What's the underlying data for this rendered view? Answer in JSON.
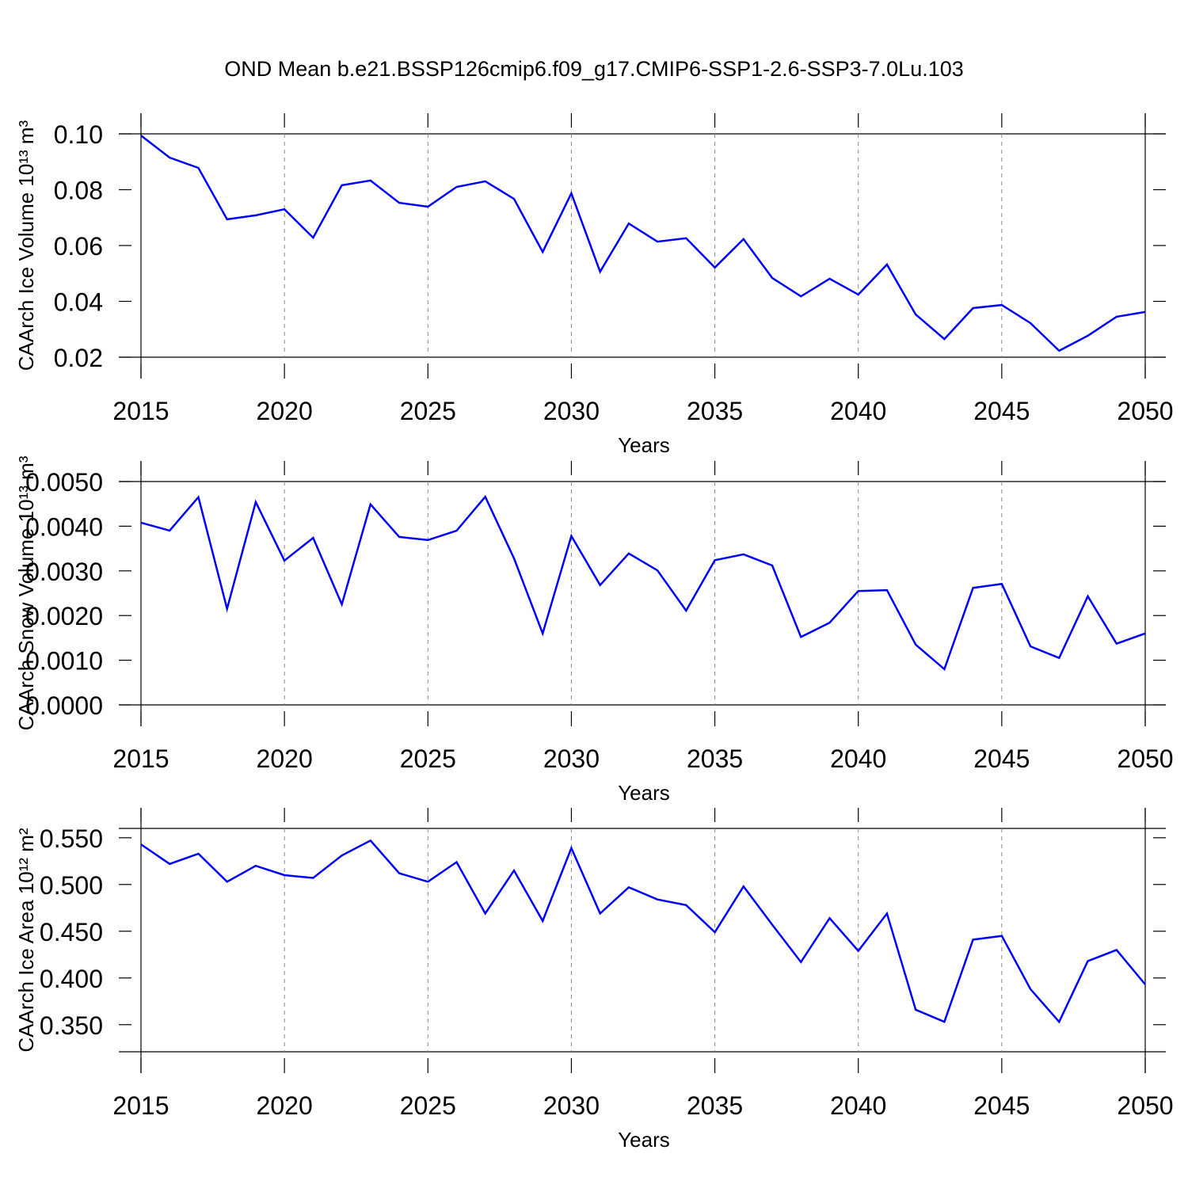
{
  "chart_data": [
    {
      "type": "line",
      "title": "OND Mean b.e21.BSSP126cmip6.f09_g17.CMIP6-SSP1-2.6-SSP3-7.0Lu.103",
      "ylabel": "CAArch Ice Volume 10¹³ m³",
      "xlabel": "Years",
      "color": "#0000ff",
      "grid": true,
      "x": [
        2015,
        2016,
        2017,
        2018,
        2019,
        2020,
        2021,
        2022,
        2023,
        2024,
        2025,
        2026,
        2027,
        2028,
        2029,
        2030,
        2031,
        2032,
        2033,
        2034,
        2035,
        2036,
        2037,
        2038,
        2039,
        2040,
        2041,
        2042,
        2043,
        2044,
        2045,
        2046,
        2047,
        2048,
        2049,
        2050
      ],
      "values": [
        0.0994,
        0.0915,
        0.0878,
        0.0694,
        0.0708,
        0.073,
        0.0628,
        0.0816,
        0.0833,
        0.0753,
        0.0739,
        0.081,
        0.083,
        0.0767,
        0.0577,
        0.0787,
        0.0506,
        0.0679,
        0.0614,
        0.0626,
        0.0521,
        0.0623,
        0.0484,
        0.0418,
        0.0481,
        0.0424,
        0.0532,
        0.0353,
        0.0265,
        0.0376,
        0.0387,
        0.0322,
        0.0223,
        0.0277,
        0.0345,
        0.0362
      ],
      "xlim": [
        2015,
        2050
      ],
      "xticks": [
        2015,
        2020,
        2025,
        2030,
        2035,
        2040,
        2045,
        2050
      ],
      "ylim": [
        0.02,
        0.1
      ],
      "yticks": [
        0.02,
        0.04,
        0.06,
        0.08,
        {
          "value": 0.1,
          "label": "0.10"
        }
      ]
    },
    {
      "type": "line",
      "ylabel": "CAArch Snow Volume 10¹³ m³",
      "xlabel": "Years",
      "color": "#0000ff",
      "grid": true,
      "x": [
        2015,
        2016,
        2017,
        2018,
        2019,
        2020,
        2021,
        2022,
        2023,
        2024,
        2025,
        2026,
        2027,
        2028,
        2029,
        2030,
        2031,
        2032,
        2033,
        2034,
        2035,
        2036,
        2037,
        2038,
        2039,
        2040,
        2041,
        2042,
        2043,
        2044,
        2045,
        2046,
        2047,
        2048,
        2049,
        2050
      ],
      "values": [
        0.00408,
        0.0039,
        0.00465,
        0.00215,
        0.00454,
        0.00323,
        0.00374,
        0.00225,
        0.00449,
        0.00376,
        0.00369,
        0.0039,
        0.00466,
        0.00328,
        0.0016,
        0.00378,
        0.00268,
        0.00339,
        0.00301,
        0.00211,
        0.00324,
        0.00337,
        0.00312,
        0.00152,
        0.00184,
        0.00255,
        0.00257,
        0.00135,
        0.0008,
        0.00262,
        0.00271,
        0.00131,
        0.00105,
        0.00243,
        0.00137,
        0.0016
      ],
      "xlim": [
        2015,
        2050
      ],
      "xticks": [
        2015,
        2020,
        2025,
        2030,
        2035,
        2040,
        2045,
        2050
      ],
      "ylim": [
        0,
        0.005
      ],
      "yticks": [
        {
          "value": 0,
          "label": "0.0000"
        },
        {
          "value": 0.001,
          "label": "0.0010"
        },
        {
          "value": 0.002,
          "label": "0.0020"
        },
        {
          "value": 0.003,
          "label": "0.0030"
        },
        {
          "value": 0.004,
          "label": "0.0040"
        },
        {
          "value": 0.005,
          "label": "0.0050"
        }
      ]
    },
    {
      "type": "line",
      "ylabel": "CAArch Ice Area 10¹² m²",
      "xlabel": "Years",
      "color": "#0000ff",
      "grid": true,
      "x": [
        2015,
        2016,
        2017,
        2018,
        2019,
        2020,
        2021,
        2022,
        2023,
        2024,
        2025,
        2026,
        2027,
        2028,
        2029,
        2030,
        2031,
        2032,
        2033,
        2034,
        2035,
        2036,
        2037,
        2038,
        2039,
        2040,
        2041,
        2042,
        2043,
        2044,
        2045,
        2046,
        2047,
        2048,
        2049,
        2050
      ],
      "values": [
        0.543,
        0.522,
        0.533,
        0.503,
        0.52,
        0.51,
        0.507,
        0.531,
        0.547,
        0.512,
        0.503,
        0.524,
        0.469,
        0.515,
        0.461,
        0.539,
        0.469,
        0.497,
        0.484,
        0.478,
        0.449,
        0.498,
        0.457,
        0.417,
        0.464,
        0.429,
        0.469,
        0.366,
        0.353,
        0.441,
        0.445,
        0.388,
        0.353,
        0.418,
        0.43,
        0.393
      ],
      "xlim": [
        2015,
        2050
      ],
      "xticks": [
        2015,
        2020,
        2025,
        2030,
        2035,
        2040,
        2045,
        2050
      ],
      "ylim": [
        0.321,
        0.56
      ],
      "yticks": [
        {
          "value": 0.35,
          "label": "0.350"
        },
        {
          "value": 0.4,
          "label": "0.400"
        },
        {
          "value": 0.45,
          "label": "0.450"
        },
        {
          "value": 0.5,
          "label": "0.500"
        },
        {
          "value": 0.55,
          "label": "0.550"
        }
      ]
    }
  ]
}
